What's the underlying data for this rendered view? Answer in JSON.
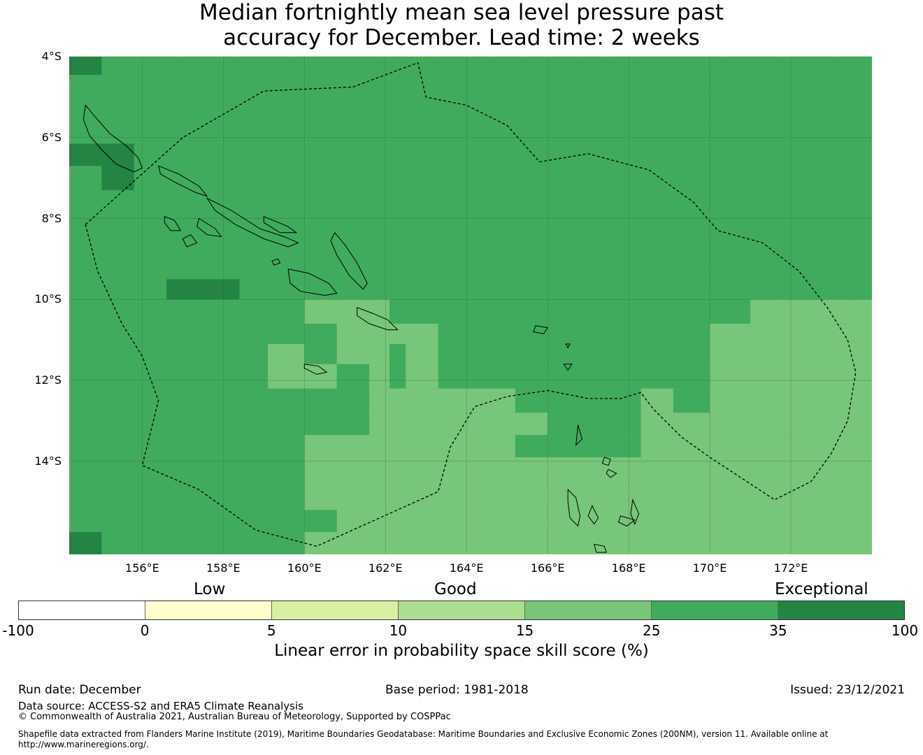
{
  "title": {
    "line1": "Median fortnightly mean sea level pressure past",
    "line2": "accuracy for December. Lead time: 2 weeks"
  },
  "map": {
    "lat_labels": [
      "4°S",
      "6°S",
      "8°S",
      "10°S",
      "12°S",
      "14°S"
    ],
    "lon_labels": [
      "156°E",
      "158°E",
      "160°E",
      "162°E",
      "164°E",
      "166°E",
      "168°E",
      "170°E",
      "172°E"
    ],
    "lat_values": [
      -4,
      -6,
      -8,
      -10,
      -12,
      -14
    ],
    "lon_values": [
      156,
      158,
      160,
      162,
      164,
      166,
      168,
      170,
      172
    ],
    "extent": {
      "lon_min": 154.2,
      "lon_max": 174.0,
      "lat_max": -4.0,
      "lat_min": -16.3
    },
    "base_category": "35-25",
    "colors": {
      "band_15_25": "#78c679",
      "band_25_35": "#41ab5d",
      "band_35_100": "#238443",
      "gridline": "#2f5f35",
      "coast": "#000000",
      "boundary": "#000000"
    },
    "regions": [
      {
        "category": "35-100",
        "lon": [
          154.2,
          155.0
        ],
        "lat": [
          -4.0,
          -4.45
        ]
      },
      {
        "category": "35-100",
        "lon": [
          154.2,
          155.0
        ],
        "lat": [
          -6.15,
          -6.7
        ]
      },
      {
        "category": "35-100",
        "lon": [
          155.0,
          155.8
        ],
        "lat": [
          -6.15,
          -7.3
        ]
      },
      {
        "category": "35-100",
        "lon": [
          156.6,
          158.4
        ],
        "lat": [
          -9.5,
          -10.0
        ]
      },
      {
        "category": "35-100",
        "lon": [
          154.2,
          155.0
        ],
        "lat": [
          -15.75,
          -16.3
        ]
      },
      {
        "category": "15-25",
        "lon": [
          160.0,
          161.6
        ],
        "lat": [
          -10.0,
          -10.6
        ]
      },
      {
        "category": "15-25",
        "lon": [
          159.1,
          160.0
        ],
        "lat": [
          -11.1,
          -11.6
        ]
      },
      {
        "category": "15-25",
        "lon": [
          159.1,
          161.6
        ],
        "lat": [
          -11.6,
          -12.2
        ]
      },
      {
        "category": "15-25",
        "lon": [
          160.8,
          161.6
        ],
        "lat": [
          -10.6,
          -11.6
        ]
      },
      {
        "category": "15-25",
        "lon": [
          162.1,
          163.3
        ],
        "lat": [
          -10.6,
          -11.1
        ]
      },
      {
        "category": "15-25",
        "lon": [
          162.5,
          163.3
        ],
        "lat": [
          -11.1,
          -12.2
        ]
      },
      {
        "category": "15-25",
        "lon": [
          161.6,
          165.2
        ],
        "lat": [
          -12.2,
          -12.8
        ]
      },
      {
        "category": "15-25",
        "lon": [
          161.6,
          166.0
        ],
        "lat": [
          -12.8,
          -13.35
        ]
      },
      {
        "category": "15-25",
        "lon": [
          160.0,
          174.0
        ],
        "lat": [
          -13.35,
          -16.3
        ]
      },
      {
        "category": "15-25",
        "lon": [
          161.6,
          162.1
        ],
        "lat": [
          -10.0,
          -12.2
        ]
      },
      {
        "category": "15-25",
        "lon": [
          170.0,
          174.0
        ],
        "lat": [
          -10.6,
          -11.7
        ]
      },
      {
        "category": "15-25",
        "lon": [
          168.3,
          174.0
        ],
        "lat": [
          -11.7,
          -13.35
        ]
      },
      {
        "category": "15-25",
        "lon": [
          171.0,
          174.0
        ],
        "lat": [
          -10.0,
          -10.6
        ]
      },
      {
        "category": "25-35",
        "lon": [
          160.0,
          160.8
        ],
        "lat": [
          -15.2,
          -15.75
        ]
      },
      {
        "category": "25-35",
        "lon": [
          160.8,
          161.6
        ],
        "lat": [
          -11.6,
          -12.2
        ]
      },
      {
        "category": "25-35",
        "lon": [
          165.2,
          166.0
        ],
        "lat": [
          -13.35,
          -13.9
        ]
      },
      {
        "category": "25-35",
        "lon": [
          166.0,
          168.3
        ],
        "lat": [
          -13.35,
          -13.9
        ]
      },
      {
        "category": "25-35",
        "lon": [
          168.3,
          170.0
        ],
        "lat": [
          -11.7,
          -12.2
        ]
      },
      {
        "category": "25-35",
        "lon": [
          169.1,
          170.0
        ],
        "lat": [
          -12.2,
          -12.8
        ]
      }
    ],
    "eez_boundary": [
      [
        154.6,
        -8.15
      ],
      [
        157.0,
        -6.0
      ],
      [
        159.0,
        -4.85
      ],
      [
        161.2,
        -4.75
      ],
      [
        162.8,
        -4.15
      ],
      [
        163.0,
        -5.0
      ],
      [
        164.0,
        -5.2
      ],
      [
        165.0,
        -5.7
      ],
      [
        165.8,
        -6.6
      ],
      [
        167.0,
        -6.4
      ],
      [
        168.5,
        -6.8
      ],
      [
        169.6,
        -7.6
      ],
      [
        170.2,
        -8.3
      ],
      [
        171.3,
        -8.6
      ],
      [
        172.2,
        -9.3
      ],
      [
        172.9,
        -10.2
      ],
      [
        173.4,
        -11.0
      ],
      [
        173.6,
        -11.8
      ],
      [
        173.4,
        -13.0
      ],
      [
        173.0,
        -13.8
      ],
      [
        172.5,
        -14.5
      ],
      [
        171.6,
        -14.95
      ],
      [
        170.0,
        -13.9
      ],
      [
        169.3,
        -13.4
      ],
      [
        168.6,
        -12.7
      ],
      [
        168.3,
        -12.3
      ],
      [
        167.8,
        -12.45
      ],
      [
        167.0,
        -12.45
      ],
      [
        166.0,
        -12.25
      ],
      [
        165.0,
        -12.4
      ],
      [
        164.2,
        -12.65
      ],
      [
        163.6,
        -13.65
      ],
      [
        163.3,
        -14.75
      ],
      [
        160.3,
        -16.1
      ],
      [
        158.8,
        -15.7
      ],
      [
        157.4,
        -14.7
      ],
      [
        156.0,
        -14.1
      ],
      [
        156.4,
        -12.5
      ],
      [
        156.0,
        -11.4
      ],
      [
        155.5,
        -10.6
      ],
      [
        154.9,
        -9.3
      ],
      [
        154.6,
        -8.15
      ]
    ],
    "coastlines": [
      [
        [
          154.6,
          -5.2
        ],
        [
          154.85,
          -5.5
        ],
        [
          155.2,
          -5.9
        ],
        [
          155.6,
          -6.2
        ],
        [
          155.9,
          -6.5
        ],
        [
          156.0,
          -6.75
        ],
        [
          155.8,
          -6.85
        ],
        [
          155.35,
          -6.65
        ],
        [
          155.0,
          -6.3
        ],
        [
          154.7,
          -5.95
        ],
        [
          154.55,
          -5.55
        ],
        [
          154.6,
          -5.2
        ]
      ],
      [
        [
          156.4,
          -6.7
        ],
        [
          156.9,
          -6.9
        ],
        [
          157.4,
          -7.2
        ],
        [
          157.6,
          -7.45
        ],
        [
          157.3,
          -7.35
        ],
        [
          156.8,
          -7.1
        ],
        [
          156.45,
          -6.9
        ],
        [
          156.4,
          -6.7
        ]
      ],
      [
        [
          157.6,
          -7.5
        ],
        [
          158.2,
          -7.8
        ],
        [
          158.9,
          -8.25
        ],
        [
          159.5,
          -8.45
        ],
        [
          159.85,
          -8.6
        ],
        [
          159.6,
          -8.7
        ],
        [
          159.0,
          -8.5
        ],
        [
          158.3,
          -8.15
        ],
        [
          157.8,
          -7.8
        ],
        [
          157.6,
          -7.5
        ]
      ],
      [
        [
          159.0,
          -7.95
        ],
        [
          159.6,
          -8.2
        ],
        [
          159.8,
          -8.35
        ],
        [
          159.4,
          -8.35
        ],
        [
          159.0,
          -8.1
        ],
        [
          159.0,
          -7.95
        ]
      ],
      [
        [
          160.75,
          -8.35
        ],
        [
          161.0,
          -8.65
        ],
        [
          161.3,
          -9.1
        ],
        [
          161.55,
          -9.6
        ],
        [
          161.45,
          -9.75
        ],
        [
          161.1,
          -9.4
        ],
        [
          160.8,
          -8.9
        ],
        [
          160.65,
          -8.55
        ],
        [
          160.75,
          -8.35
        ]
      ],
      [
        [
          159.6,
          -9.25
        ],
        [
          160.1,
          -9.35
        ],
        [
          160.6,
          -9.6
        ],
        [
          160.8,
          -9.85
        ],
        [
          160.5,
          -9.9
        ],
        [
          159.9,
          -9.8
        ],
        [
          159.65,
          -9.6
        ],
        [
          159.6,
          -9.25
        ]
      ],
      [
        [
          161.3,
          -10.2
        ],
        [
          161.7,
          -10.35
        ],
        [
          162.05,
          -10.5
        ],
        [
          162.3,
          -10.75
        ],
        [
          162.05,
          -10.75
        ],
        [
          161.6,
          -10.6
        ],
        [
          161.3,
          -10.4
        ],
        [
          161.3,
          -10.2
        ]
      ],
      [
        [
          156.55,
          -7.95
        ],
        [
          156.8,
          -8.05
        ],
        [
          156.95,
          -8.3
        ],
        [
          156.7,
          -8.3
        ],
        [
          156.55,
          -8.1
        ],
        [
          156.55,
          -7.95
        ]
      ],
      [
        [
          157.4,
          -8.0
        ],
        [
          157.8,
          -8.25
        ],
        [
          157.95,
          -8.45
        ],
        [
          157.6,
          -8.4
        ],
        [
          157.35,
          -8.2
        ],
        [
          157.4,
          -8.0
        ]
      ],
      [
        [
          157.0,
          -8.5
        ],
        [
          157.2,
          -8.4
        ],
        [
          157.35,
          -8.6
        ],
        [
          157.1,
          -8.7
        ],
        [
          157.0,
          -8.5
        ]
      ],
      [
        [
          165.7,
          -10.65
        ],
        [
          166.0,
          -10.7
        ],
        [
          165.9,
          -10.85
        ],
        [
          165.65,
          -10.8
        ],
        [
          165.7,
          -10.65
        ]
      ],
      [
        [
          166.75,
          -13.1
        ],
        [
          166.85,
          -13.45
        ],
        [
          166.7,
          -13.6
        ],
        [
          166.75,
          -13.1
        ]
      ],
      [
        [
          166.5,
          -14.7
        ],
        [
          166.7,
          -14.9
        ],
        [
          166.8,
          -15.35
        ],
        [
          166.75,
          -15.6
        ],
        [
          166.55,
          -15.4
        ],
        [
          166.5,
          -15.0
        ],
        [
          166.5,
          -14.7
        ]
      ],
      [
        [
          167.1,
          -15.1
        ],
        [
          167.25,
          -15.4
        ],
        [
          167.15,
          -15.55
        ],
        [
          167.0,
          -15.35
        ],
        [
          167.1,
          -15.1
        ]
      ],
      [
        [
          167.8,
          -15.35
        ],
        [
          168.15,
          -15.45
        ],
        [
          167.95,
          -15.6
        ],
        [
          167.75,
          -15.5
        ],
        [
          167.8,
          -15.35
        ]
      ],
      [
        [
          168.1,
          -14.95
        ],
        [
          168.25,
          -15.3
        ],
        [
          168.15,
          -15.55
        ],
        [
          168.05,
          -15.3
        ],
        [
          168.1,
          -14.95
        ]
      ],
      [
        [
          167.4,
          -13.9
        ],
        [
          167.55,
          -13.95
        ],
        [
          167.5,
          -14.1
        ],
        [
          167.35,
          -14.05
        ],
        [
          167.4,
          -13.9
        ]
      ],
      [
        [
          167.5,
          -14.2
        ],
        [
          167.7,
          -14.3
        ],
        [
          167.55,
          -14.4
        ],
        [
          167.45,
          -14.3
        ],
        [
          167.5,
          -14.2
        ]
      ],
      [
        [
          167.15,
          -16.05
        ],
        [
          167.4,
          -16.1
        ],
        [
          167.45,
          -16.25
        ],
        [
          167.2,
          -16.25
        ],
        [
          167.15,
          -16.05
        ]
      ],
      [
        [
          160.0,
          -11.6
        ],
        [
          160.35,
          -11.65
        ],
        [
          160.55,
          -11.8
        ],
        [
          160.3,
          -11.85
        ],
        [
          160.0,
          -11.7
        ],
        [
          160.0,
          -11.6
        ]
      ],
      [
        [
          166.4,
          -11.6
        ],
        [
          166.6,
          -11.6
        ],
        [
          166.5,
          -11.75
        ],
        [
          166.4,
          -11.6
        ]
      ],
      [
        [
          166.45,
          -11.1
        ],
        [
          166.55,
          -11.1
        ],
        [
          166.5,
          -11.2
        ],
        [
          166.45,
          -11.1
        ]
      ],
      [
        [
          159.2,
          -9.05
        ],
        [
          159.35,
          -9.0
        ],
        [
          159.4,
          -9.1
        ],
        [
          159.25,
          -9.15
        ],
        [
          159.2,
          -9.05
        ]
      ]
    ]
  },
  "categories": {
    "low": "Low",
    "good": "Good",
    "exceptional": "Exceptional"
  },
  "colorbar": {
    "ticks": [
      "-100",
      "0",
      "5",
      "10",
      "15",
      "25",
      "35",
      "100"
    ],
    "colors": [
      "#ffffff",
      "#ffffcc",
      "#d9f0a3",
      "#addd8e",
      "#78c679",
      "#41ab5d",
      "#238443"
    ],
    "title": "Linear error in probability space skill score (%)"
  },
  "footer": {
    "run_date": "Run date: December",
    "base_period": "Base period: 1981-2018",
    "issued": "Issued: 23/12/2021",
    "data_source": "Data source: ACCESS-S2 and ERA5 Climate Reanalysis",
    "copyright": "© Commonwealth of Australia 2021, Australian Bureau of Meteorology, Supported by COSPPac",
    "shapefile_line1": "Shapefile data extracted from Flanders Marine Institute (2019), Maritime Boundaries Geodatabase: Maritime Boundaries and Exclusive Economic Zones (200NM), version 11. Available online at",
    "shapefile_line2": "http://www.marineregions.org/."
  }
}
